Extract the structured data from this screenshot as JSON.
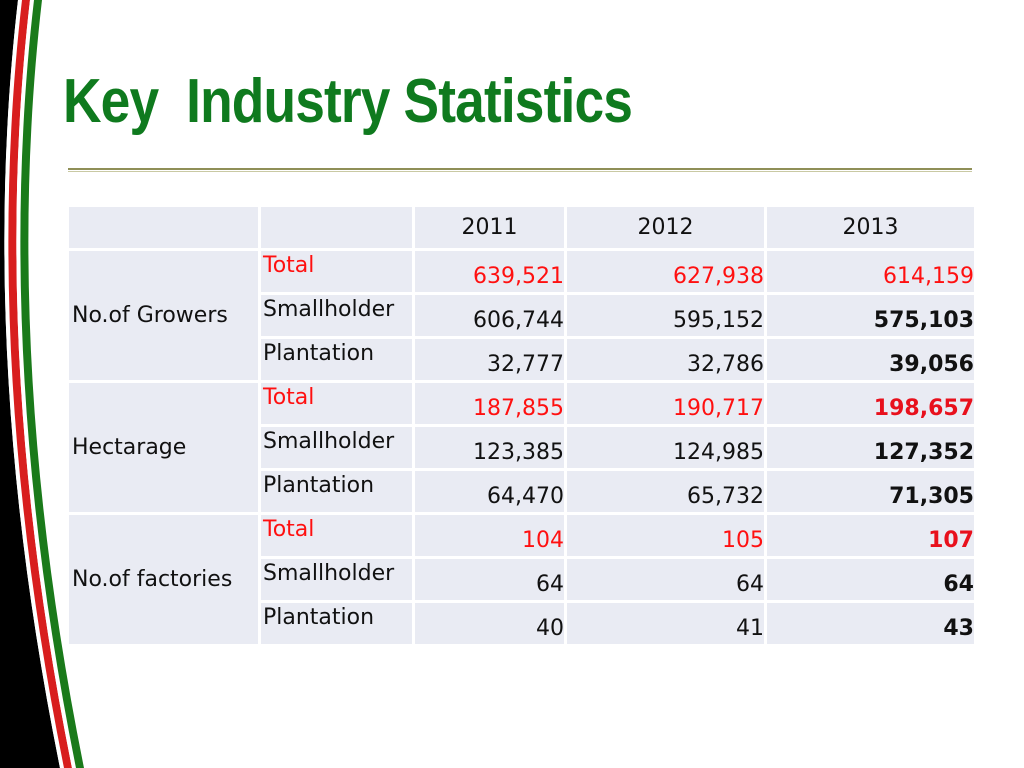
{
  "title": "Key  Industry Statistics",
  "colors": {
    "title": "#0f7a1e",
    "highlight": "#ff1010",
    "cell_bg": "#e9ebf3",
    "stripe_red": "#d81e1e",
    "stripe_green": "#1a7a1a"
  },
  "table": {
    "years": [
      "2011",
      "2012",
      "2013"
    ],
    "groups": [
      {
        "category": "No.of Growers",
        "rows": [
          {
            "label": "Total",
            "values": [
              "639,521",
              "627,938",
              "614,159"
            ]
          },
          {
            "label": "Smallholder",
            "values": [
              "606,744",
              "595,152",
              "575,103"
            ]
          },
          {
            "label": "Plantation",
            "values": [
              "32,777",
              "32,786",
              "39,056"
            ]
          }
        ]
      },
      {
        "category": "Hectarage",
        "rows": [
          {
            "label": "Total",
            "values": [
              "187,855",
              "190,717",
              "198,657"
            ]
          },
          {
            "label": "Smallholder",
            "values": [
              "123,385",
              "124,985",
              "127,352"
            ]
          },
          {
            "label": "Plantation",
            "values": [
              "64,470",
              "65,732",
              "71,305"
            ]
          }
        ]
      },
      {
        "category": "No.of factories",
        "rows": [
          {
            "label": "Total",
            "values": [
              "104",
              "105",
              "107"
            ]
          },
          {
            "label": "Smallholder",
            "values": [
              "64",
              "64",
              "64"
            ]
          },
          {
            "label": "Plantation",
            "values": [
              "40",
              "41",
              "43"
            ]
          }
        ]
      }
    ]
  }
}
